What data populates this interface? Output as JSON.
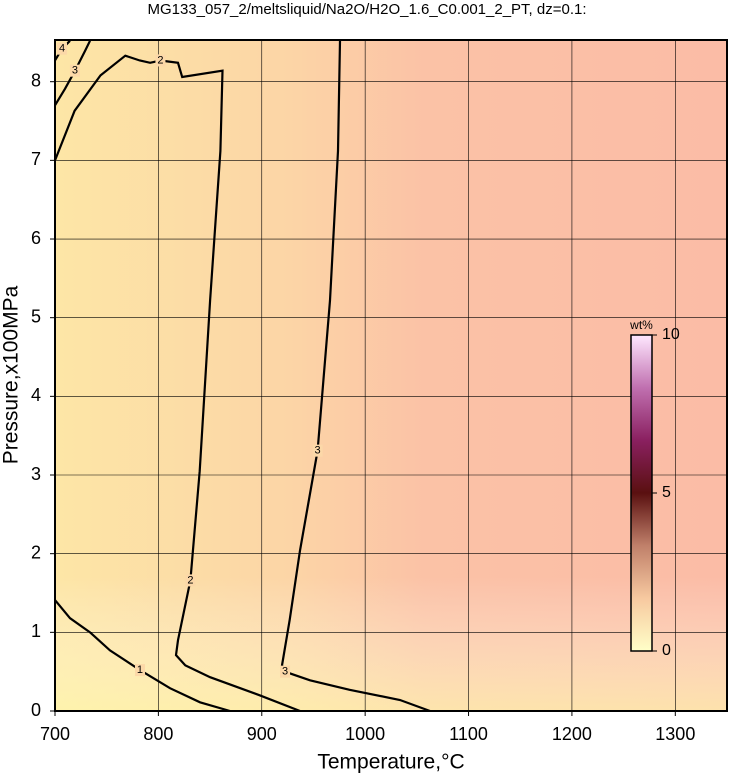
{
  "chart_data": {
    "type": "contour",
    "title": "MG133_057_2/meltsliquid/Na2O/H2O_1.6_C0.001_2_PT, dz=0.1:",
    "x_label": "Temperature,°C",
    "y_label": "Pressure,x100MPa",
    "xlim": [
      700,
      1350
    ],
    "ylim": [
      0,
      8.53
    ],
    "xticks": [
      700,
      800,
      900,
      1000,
      1100,
      1200,
      1300
    ],
    "yticks": [
      0,
      1,
      2,
      3,
      4,
      5,
      6,
      7,
      8
    ],
    "grid": true,
    "contour_color": "#000000",
    "contours": [
      {
        "level": 1,
        "x": [
          700,
          714.5,
          733.9,
          753.2,
          782.2,
          811.2,
          840.3,
          869.3
        ],
        "y": [
          1.41,
          1.18,
          1.0,
          0.77,
          0.52,
          0.29,
          0.11,
          0
        ]
      },
      {
        "level": 2,
        "x": [
          700,
          719,
          744,
          768,
          782,
          792,
          802,
          819,
          823,
          862,
          860,
          850,
          840,
          831,
          819,
          817,
          826,
          850,
          898,
          937
        ],
        "y": [
          7.0,
          7.63,
          8.08,
          8.33,
          8.27,
          8.24,
          8.27,
          8.24,
          8.06,
          8.14,
          7.12,
          5.22,
          3.05,
          1.66,
          0.9,
          0.71,
          0.58,
          0.43,
          0.2,
          0
        ]
      },
      {
        "level": 3,
        "x": [
          975.7,
          973.7,
          966,
          954,
          937,
          927,
          919.6,
          922.5,
          946.7,
          985,
          1033.7,
          1062.7
        ],
        "y": [
          8.52,
          7.12,
          5.22,
          3.31,
          2.04,
          1.16,
          0.58,
          0.5,
          0.39,
          0.27,
          0.14,
          0
        ]
      },
      {
        "level": 3,
        "x": [
          700,
          709.7,
          719.3,
          729,
          733.9
        ],
        "y": [
          7.7,
          7.91,
          8.14,
          8.39,
          8.52
        ]
      },
      {
        "level": 4,
        "x": [
          700,
          706.8,
          714.5
        ],
        "y": [
          8.27,
          8.42,
          8.52
        ]
      }
    ],
    "colorbar": {
      "label": "wt%",
      "lim": [
        0,
        10
      ],
      "ticks": [
        0,
        5,
        10
      ],
      "colors": [
        "#ffffc8",
        "#f7c9a0",
        "#c0806a",
        "#5a1010",
        "#8a2060",
        "#c070b0",
        "#ffe8ff"
      ]
    }
  }
}
